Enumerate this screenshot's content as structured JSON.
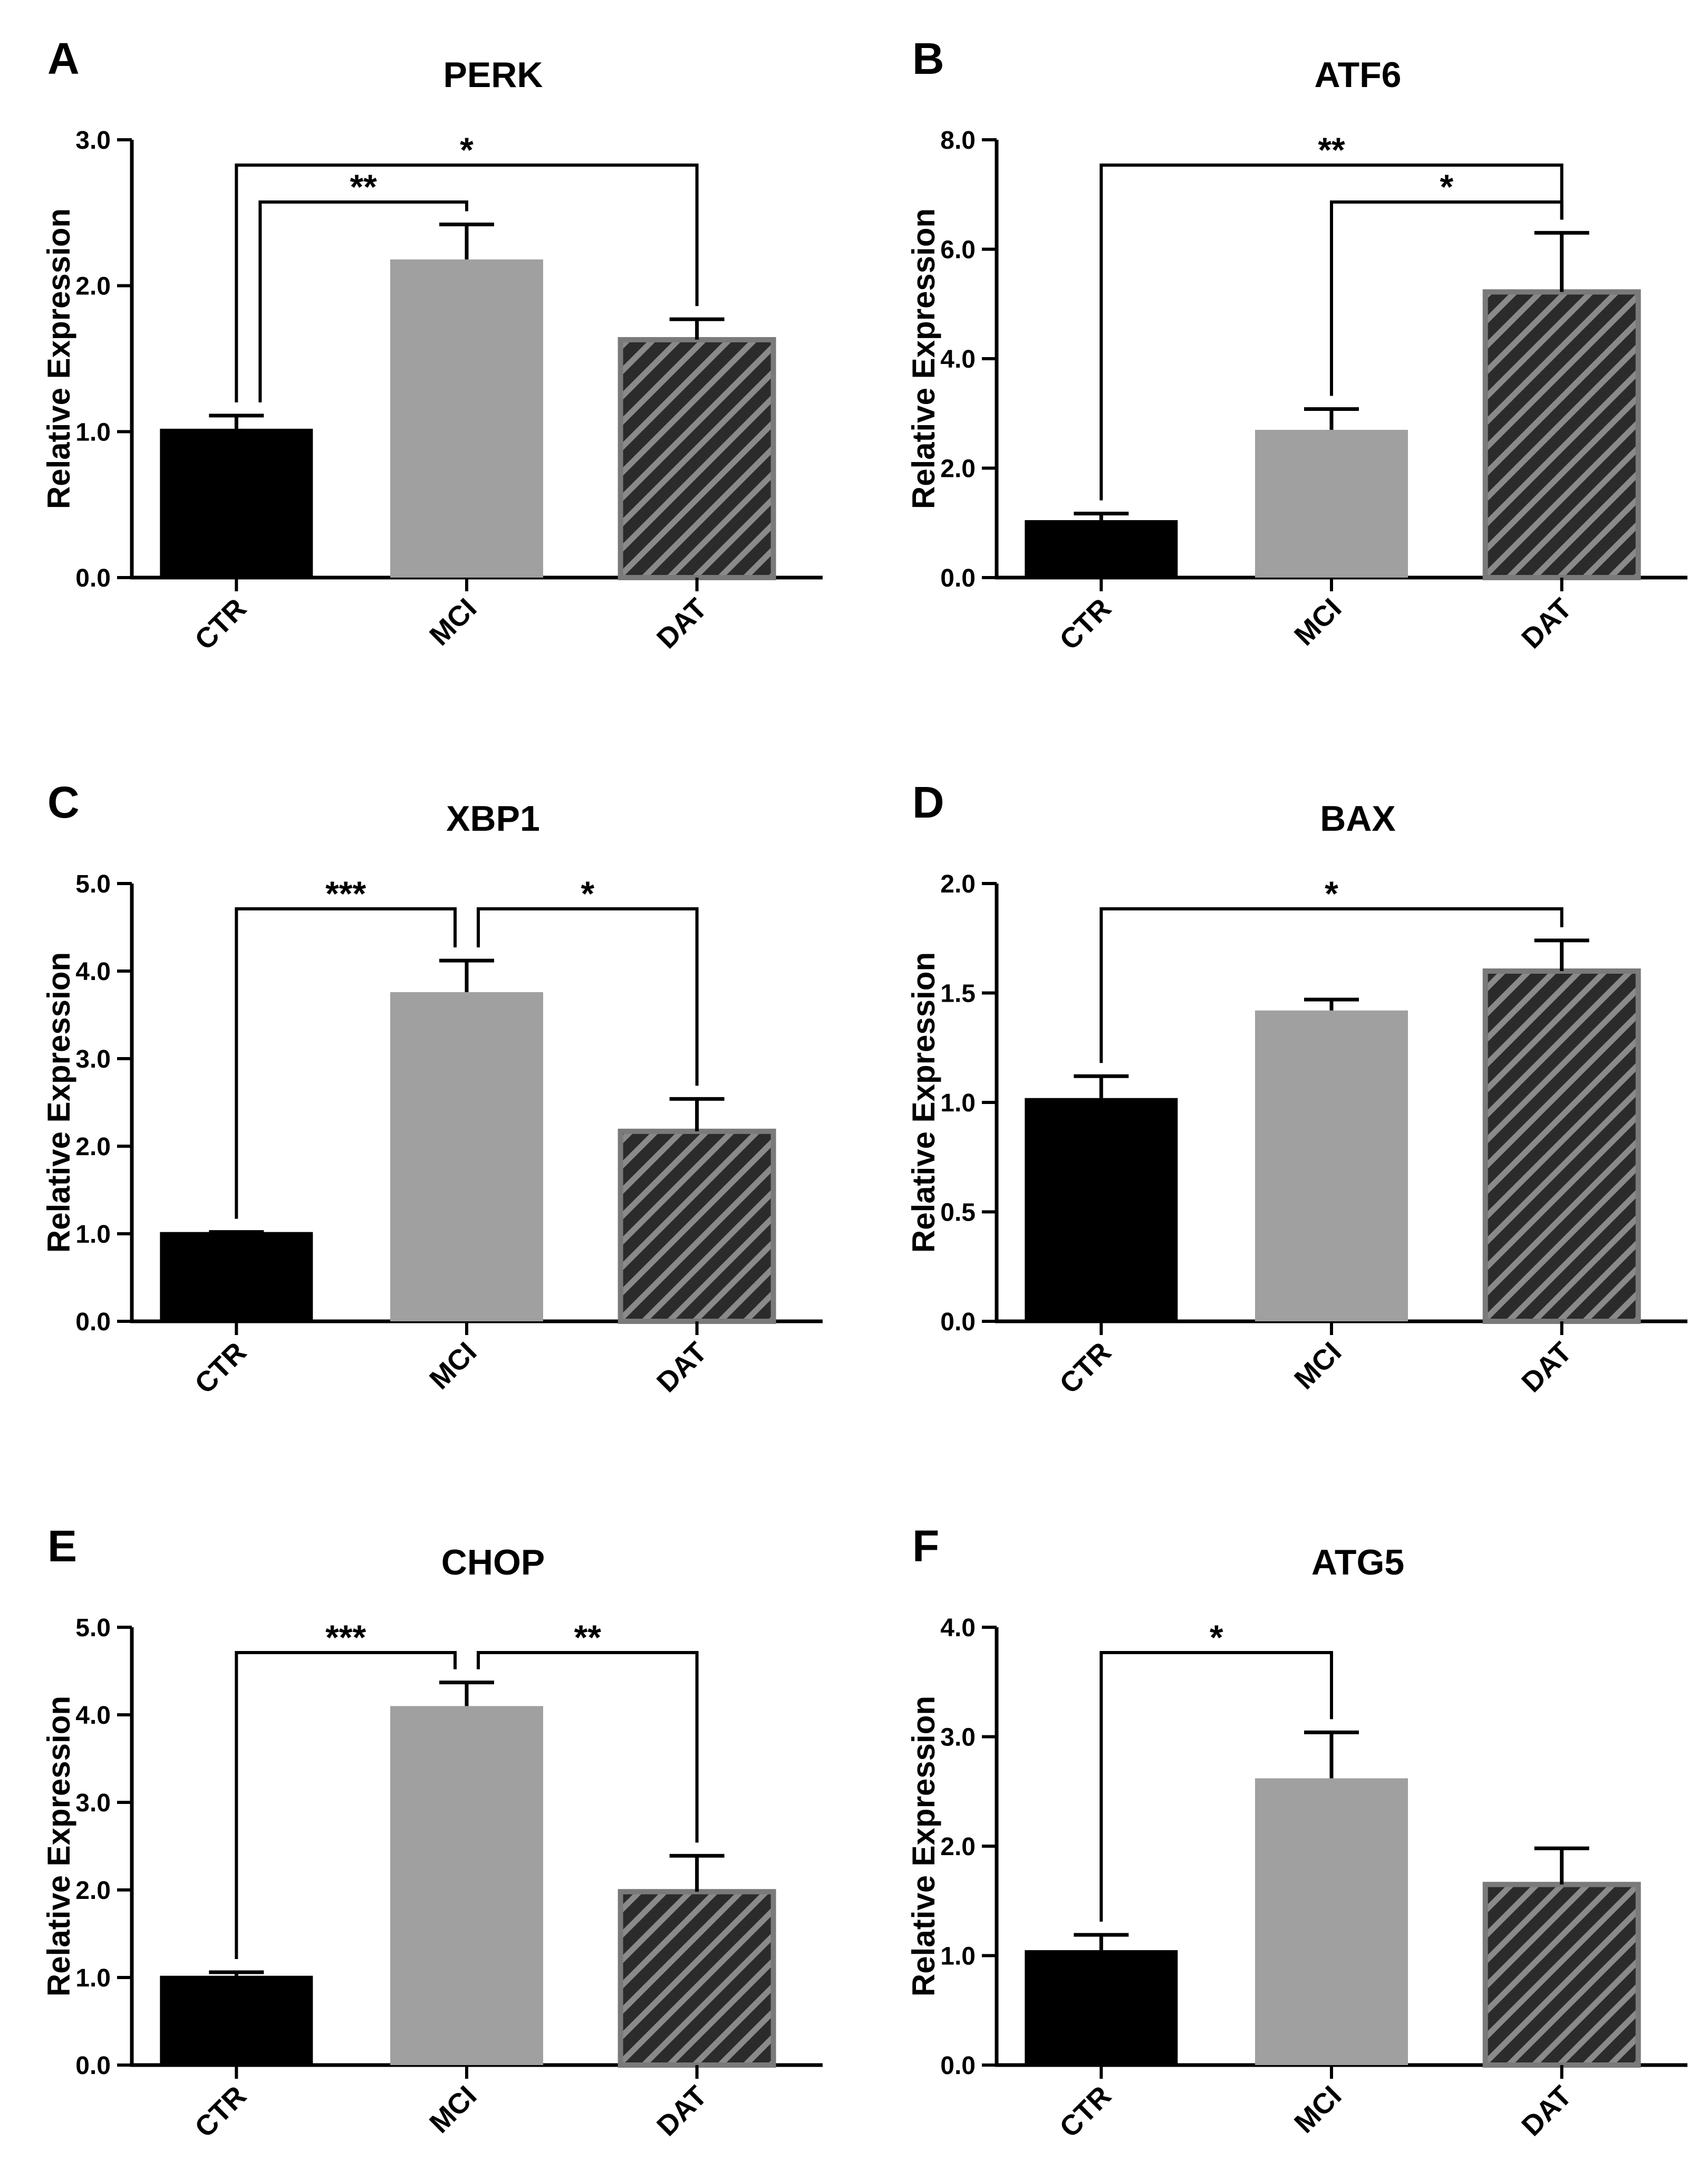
{
  "chart_data": [
    {
      "panel": "A",
      "type": "bar",
      "title": "PERK",
      "ylabel": "Relative Expression",
      "ylim": [
        0,
        3
      ],
      "yticks": [
        "0.0",
        "1.0",
        "2.0",
        "3.0"
      ],
      "categories": [
        "CTR",
        "MCI",
        "DAT"
      ],
      "values": [
        1.02,
        2.18,
        1.63
      ],
      "errors": [
        0.09,
        0.24,
        0.14
      ],
      "significance": [
        {
          "from": 0,
          "to": 2,
          "label": "*",
          "level": 0
        },
        {
          "from": 0,
          "to": 1,
          "label": "**",
          "level": 1
        }
      ]
    },
    {
      "panel": "B",
      "type": "bar",
      "title": "ATF6",
      "ylabel": "Relative Expression",
      "ylim": [
        0,
        8
      ],
      "yticks": [
        "0.0",
        "2.0",
        "4.0",
        "6.0",
        "8.0"
      ],
      "categories": [
        "CTR",
        "MCI",
        "DAT"
      ],
      "values": [
        1.05,
        2.7,
        5.22
      ],
      "errors": [
        0.12,
        0.38,
        1.08
      ],
      "significance": [
        {
          "from": 0,
          "to": 2,
          "label": "**",
          "level": 0
        },
        {
          "from": 1,
          "to": 2,
          "label": "*",
          "level": 1
        }
      ]
    },
    {
      "panel": "C",
      "type": "bar",
      "title": "XBP1",
      "ylabel": "Relative Expression",
      "ylim": [
        0,
        5
      ],
      "yticks": [
        "0.0",
        "1.0",
        "2.0",
        "3.0",
        "4.0",
        "5.0"
      ],
      "categories": [
        "CTR",
        "MCI",
        "DAT"
      ],
      "values": [
        1.02,
        3.76,
        2.17
      ],
      "errors": [
        0.0,
        0.36,
        0.37
      ],
      "significance": [
        {
          "from": 0,
          "to": 1,
          "label": "***",
          "level": 0
        },
        {
          "from": 1,
          "to": 2,
          "label": "*",
          "level": 0
        }
      ]
    },
    {
      "panel": "D",
      "type": "bar",
      "title": "BAX",
      "ylabel": "Relative Expression",
      "ylim": [
        0,
        2
      ],
      "yticks": [
        "0.0",
        "0.5",
        "1.0",
        "1.5",
        "2.0"
      ],
      "categories": [
        "CTR",
        "MCI",
        "DAT"
      ],
      "values": [
        1.02,
        1.42,
        1.6
      ],
      "errors": [
        0.1,
        0.05,
        0.14
      ],
      "significance": [
        {
          "from": 0,
          "to": 2,
          "label": "*",
          "level": 0
        }
      ]
    },
    {
      "panel": "E",
      "type": "bar",
      "title": "CHOP",
      "ylabel": "Relative Expression",
      "ylim": [
        0,
        5
      ],
      "yticks": [
        "0.0",
        "1.0",
        "2.0",
        "3.0",
        "4.0",
        "5.0"
      ],
      "categories": [
        "CTR",
        "MCI",
        "DAT"
      ],
      "values": [
        1.02,
        4.1,
        1.98
      ],
      "errors": [
        0.04,
        0.27,
        0.41
      ],
      "significance": [
        {
          "from": 0,
          "to": 1,
          "label": "***",
          "level": 0
        },
        {
          "from": 1,
          "to": 2,
          "label": "**",
          "level": 0
        }
      ]
    },
    {
      "panel": "F",
      "type": "bar",
      "title": "ATG5",
      "ylabel": "Relative Expression",
      "ylim": [
        0,
        4
      ],
      "yticks": [
        "0.0",
        "1.0",
        "2.0",
        "3.0",
        "4.0"
      ],
      "categories": [
        "CTR",
        "MCI",
        "DAT"
      ],
      "values": [
        1.05,
        2.62,
        1.65
      ],
      "errors": [
        0.14,
        0.42,
        0.33
      ],
      "significance": [
        {
          "from": 0,
          "to": 1,
          "label": "*",
          "level": 0
        }
      ]
    }
  ],
  "colors": {
    "CTR": "#000000",
    "MCI": "#a0a0a0",
    "DAT": "#2b2b2b",
    "DAT_border": "#7a7a7a",
    "DAT_stripe": "#8a8a8a"
  }
}
